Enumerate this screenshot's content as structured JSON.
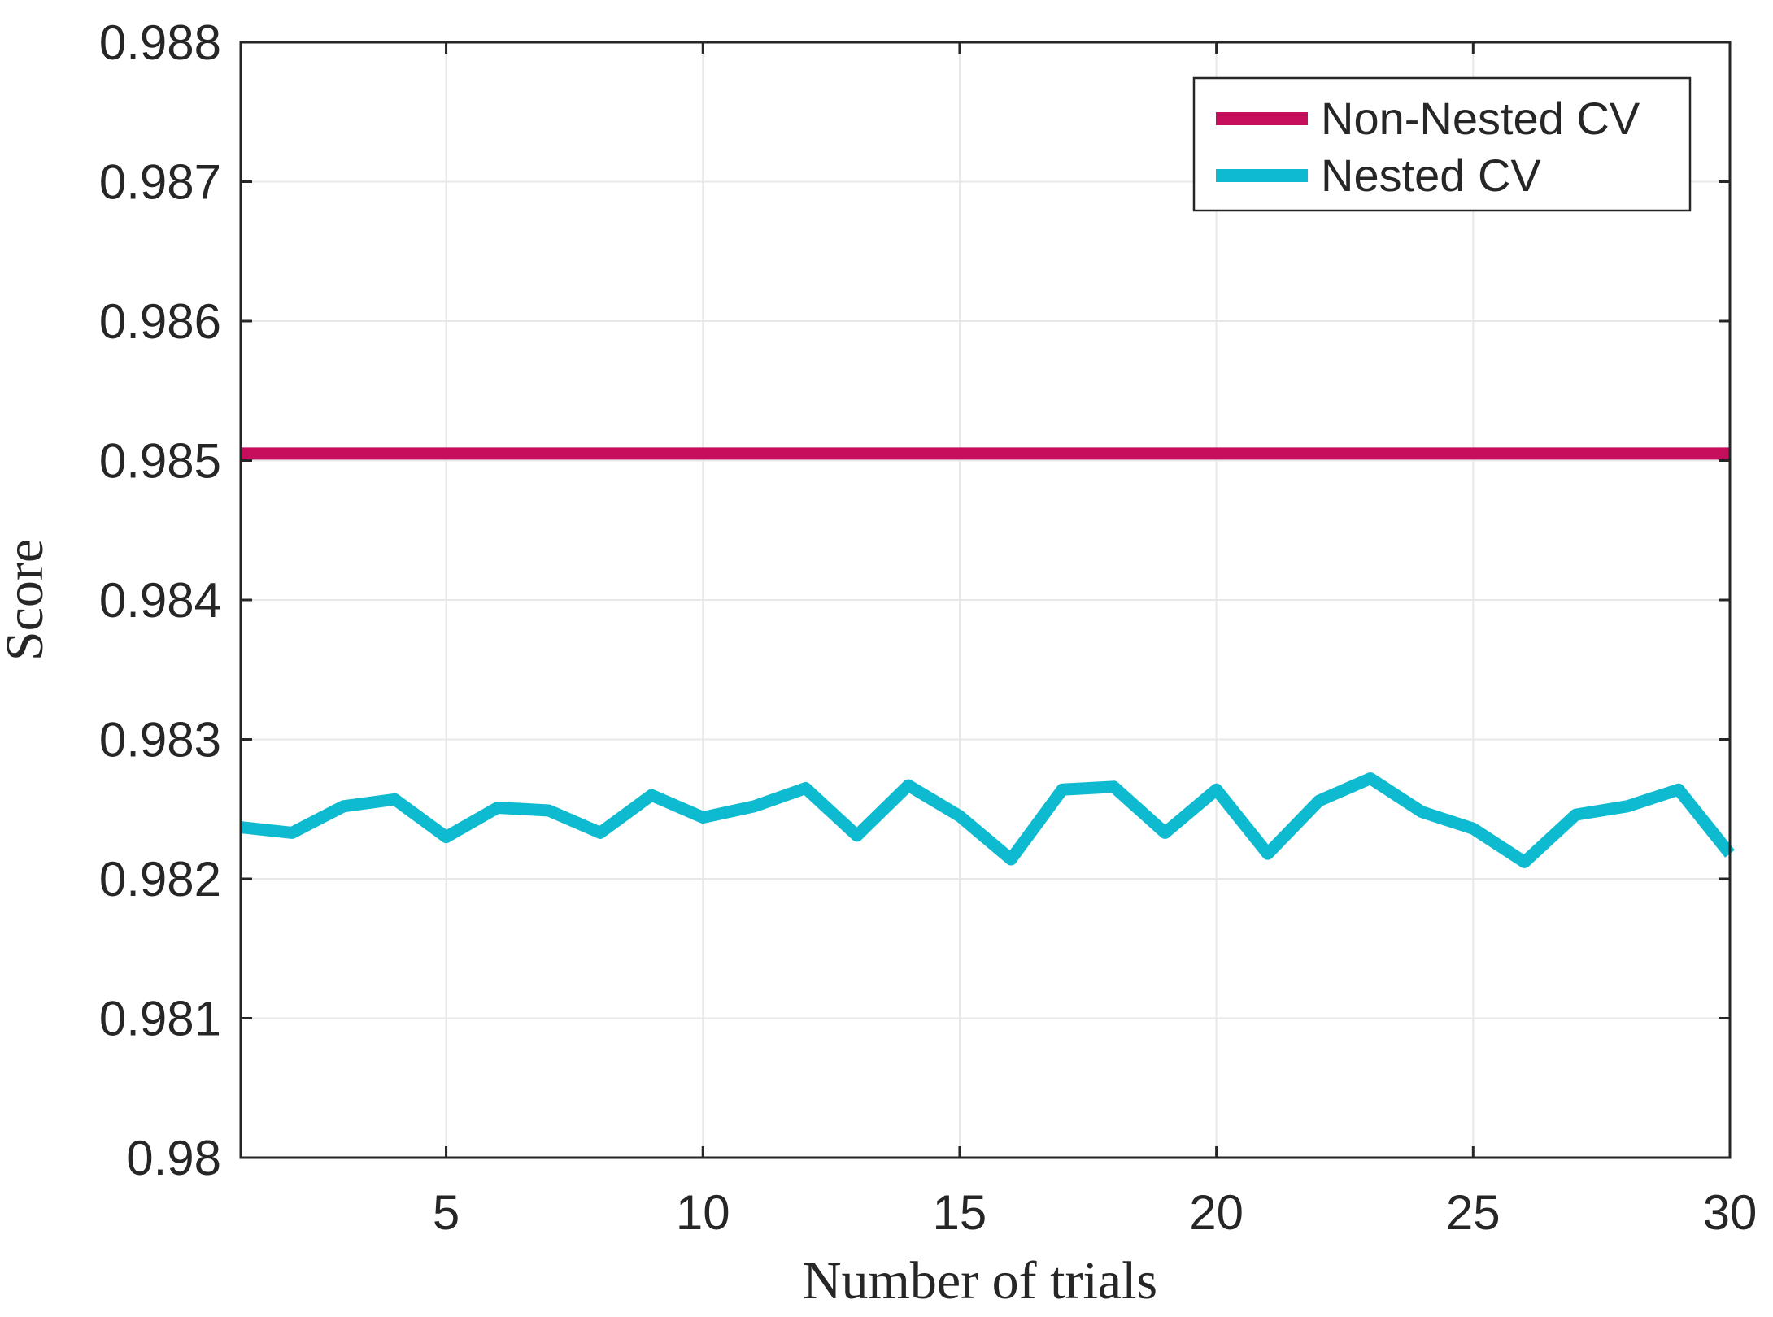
{
  "chart_data": {
    "type": "line",
    "title": "",
    "xlabel": "Number of trials",
    "ylabel": "Score",
    "x": [
      1,
      2,
      3,
      4,
      5,
      6,
      7,
      8,
      9,
      10,
      11,
      12,
      13,
      14,
      15,
      16,
      17,
      18,
      19,
      20,
      21,
      22,
      23,
      24,
      25,
      26,
      27,
      28,
      29,
      30
    ],
    "series": [
      {
        "name": "Non-Nested CV",
        "color": "#C50F5C",
        "values": [
          0.98505,
          0.98505,
          0.98505,
          0.98505,
          0.98505,
          0.98505,
          0.98505,
          0.98505,
          0.98505,
          0.98505,
          0.98505,
          0.98505,
          0.98505,
          0.98505,
          0.98505,
          0.98505,
          0.98505,
          0.98505,
          0.98505,
          0.98505,
          0.98505,
          0.98505,
          0.98505,
          0.98505,
          0.98505,
          0.98505,
          0.98505,
          0.98505,
          0.98505,
          0.98505
        ]
      },
      {
        "name": "Nested CV",
        "color": "#0EBACF",
        "values": [
          0.98237,
          0.98233,
          0.98252,
          0.98257,
          0.9823,
          0.98251,
          0.98249,
          0.98233,
          0.9826,
          0.98244,
          0.98252,
          0.98265,
          0.98231,
          0.98267,
          0.98245,
          0.98214,
          0.98264,
          0.98266,
          0.98233,
          0.98264,
          0.98218,
          0.98256,
          0.98272,
          0.98248,
          0.98236,
          0.98212,
          0.98246,
          0.98252,
          0.98264,
          0.98218
        ]
      }
    ],
    "xlim": [
      1,
      30
    ],
    "ylim": [
      0.98,
      0.988
    ],
    "x_ticks": [
      5,
      10,
      15,
      20,
      25,
      30
    ],
    "x_tick_labels": [
      "5",
      "10",
      "15",
      "20",
      "25",
      "30"
    ],
    "y_ticks": [
      0.98,
      0.981,
      0.982,
      0.983,
      0.984,
      0.985,
      0.986,
      0.987,
      0.988
    ],
    "y_tick_labels": [
      "0.98",
      "0.981",
      "0.982",
      "0.983",
      "0.984",
      "0.985",
      "0.986",
      "0.987",
      "0.988"
    ],
    "grid": true,
    "legend_position": "top-right",
    "legend": [
      "Non-Nested CV",
      "Nested CV"
    ]
  },
  "colors": {
    "axis": "#262626",
    "grid": "#E8E8E8",
    "text": "#262626",
    "background": "#FFFFFF",
    "non_nested": "#C50F5C",
    "nested": "#0EBACF"
  }
}
